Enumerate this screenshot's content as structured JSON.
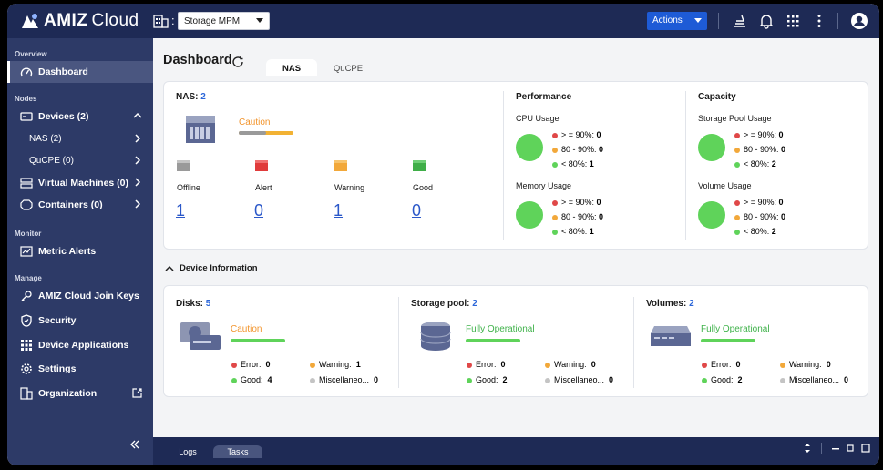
{
  "app": {
    "brand_main": "AMIZ",
    "brand_cloud": "Cloud"
  },
  "topbar": {
    "org_selector": "Storage MPM",
    "actions_label": "Actions",
    "icons": [
      "org-building-icon",
      "broom-icon",
      "bell-icon",
      "apps-grid-icon",
      "more-vertical-icon",
      "user-avatar-icon"
    ]
  },
  "sidebar": {
    "overview_title": "Overview",
    "nodes_title": "Nodes",
    "monitor_title": "Monitor",
    "manage_title": "Manage",
    "items": {
      "dashboard": "Dashboard",
      "devices": "Devices (2)",
      "nas": "NAS (2)",
      "qucpe": "QuCPE (0)",
      "vms": "Virtual Machines (0)",
      "containers": "Containers (0)",
      "metric_alerts": "Metric Alerts",
      "join_keys": "AMIZ Cloud Join Keys",
      "security": "Security",
      "device_apps": "Device Applications",
      "settings": "Settings",
      "organization": "Organization"
    }
  },
  "main": {
    "title": "Dashboard",
    "tabs": [
      "NAS",
      "QuCPE"
    ],
    "nas": {
      "label": "NAS:",
      "count": "2",
      "status": "Caution",
      "states": [
        {
          "label": "Offline",
          "count": "1",
          "color": "#9a9a9a"
        },
        {
          "label": "Alert",
          "count": "0",
          "color": "#e03b3b"
        },
        {
          "label": "Warning",
          "count": "1",
          "color": "#f2a83a"
        },
        {
          "label": "Good",
          "count": "0",
          "color": "#3fae48"
        }
      ]
    },
    "performance": {
      "title": "Performance",
      "cpu_title": "CPU Usage",
      "cpu": [
        {
          "label": "> = 90%:",
          "value": "0",
          "color": "#e04848"
        },
        {
          "label": "80 - 90%:",
          "value": "0",
          "color": "#f2a83a"
        },
        {
          "label": "< 80%:",
          "value": "1",
          "color": "#5fd35a"
        }
      ],
      "mem_title": "Memory Usage",
      "mem": [
        {
          "label": "> = 90%:",
          "value": "0",
          "color": "#e04848"
        },
        {
          "label": "80 - 90%:",
          "value": "0",
          "color": "#f2a83a"
        },
        {
          "label": "< 80%:",
          "value": "1",
          "color": "#5fd35a"
        }
      ]
    },
    "capacity": {
      "title": "Capacity",
      "pool_title": "Storage Pool Usage",
      "pool": [
        {
          "label": "> = 90%:",
          "value": "0",
          "color": "#e04848"
        },
        {
          "label": "80 - 90%:",
          "value": "0",
          "color": "#f2a83a"
        },
        {
          "label": "< 80%:",
          "value": "2",
          "color": "#5fd35a"
        }
      ],
      "vol_title": "Volume Usage",
      "vol": [
        {
          "label": "> = 90%:",
          "value": "0",
          "color": "#e04848"
        },
        {
          "label": "80 - 90%:",
          "value": "0",
          "color": "#f2a83a"
        },
        {
          "label": "< 80%:",
          "value": "2",
          "color": "#5fd35a"
        }
      ]
    },
    "device_info": {
      "title": "Device Information",
      "disks": {
        "label": "Disks:",
        "count": "5",
        "status": "Caution",
        "error_label": "Error:",
        "error": "0",
        "warning_label": "Warning:",
        "warning": "1",
        "good_label": "Good:",
        "good": "4",
        "misc_label": "Miscellaneo...",
        "misc": "0"
      },
      "pool": {
        "label": "Storage pool:",
        "count": "2",
        "status": "Fully Operational",
        "error_label": "Error:",
        "error": "0",
        "warning_label": "Warning:",
        "warning": "0",
        "good_label": "Good:",
        "good": "2",
        "misc_label": "Miscellaneo...",
        "misc": "0"
      },
      "volumes": {
        "label": "Volumes:",
        "count": "2",
        "status": "Fully Operational",
        "error_label": "Error:",
        "error": "0",
        "warning_label": "Warning:",
        "warning": "0",
        "good_label": "Good:",
        "good": "2",
        "misc_label": "Miscellaneo...",
        "misc": "0"
      }
    }
  },
  "bottom": {
    "tabs": [
      "Logs",
      "Tasks"
    ],
    "active_tab": "Tasks"
  },
  "colors": {
    "brand_navy": "#1e2a55",
    "sidebar": "#2d3a67",
    "accent_blue": "#1e5bd6",
    "caution": "#f2942c",
    "good": "#5fd35a"
  }
}
